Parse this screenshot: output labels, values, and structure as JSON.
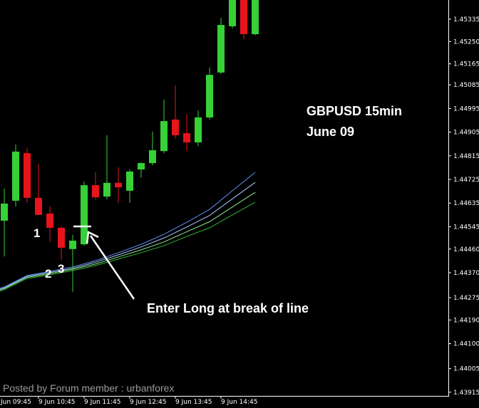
{
  "chart_data": {
    "type": "candlestick",
    "title": "GBPUSD 15min",
    "subtitle": "June 09",
    "categories": [
      "Jun 09:45",
      null,
      null,
      null,
      "9 Jun 10:45",
      null,
      null,
      null,
      "9 Jun 11:45",
      null,
      null,
      null,
      "9 Jun 12:45",
      null,
      null,
      null,
      "9 Jun 13:45",
      null,
      null,
      null,
      "9 Jun 14:45",
      null,
      null,
      null
    ],
    "open": [
      null,
      1.44568,
      1.44644,
      1.44825,
      1.44655,
      1.44595,
      1.44541,
      1.4446,
      1.44478,
      1.44703,
      1.4466,
      1.44712,
      1.44682,
      1.44763,
      1.44787,
      1.44833,
      1.44953,
      1.44901,
      1.44866,
      1.44961,
      1.45132,
      1.45308,
      1.45408,
      1.45278
    ],
    "high": [
      null,
      1.4469,
      1.44858,
      1.44844,
      1.44785,
      1.44622,
      1.44546,
      1.44514,
      1.44717,
      1.44752,
      1.44893,
      1.44771,
      1.44763,
      1.4479,
      1.44907,
      1.45029,
      1.45083,
      1.44974,
      1.44988,
      1.45151,
      1.4534,
      1.45435,
      1.45435,
      1.45435
    ],
    "low": [
      null,
      1.44432,
      1.44622,
      1.44636,
      1.4459,
      1.44487,
      1.44419,
      1.44297,
      1.44473,
      1.44649,
      1.44649,
      1.44636,
      1.44636,
      1.44731,
      1.44779,
      1.44825,
      1.4488,
      1.44833,
      1.44852,
      1.44953,
      1.45126,
      1.453,
      1.45259,
      1.45273
    ],
    "close": [
      null,
      1.44633,
      1.44831,
      1.44655,
      1.4459,
      1.44541,
      1.44465,
      1.44492,
      1.44703,
      1.44657,
      1.44712,
      1.44695,
      1.44755,
      1.44787,
      1.44836,
      1.44947,
      1.44893,
      1.44866,
      1.44961,
      1.45123,
      1.45313,
      1.45408,
      1.45278,
      1.45408
    ],
    "up_color": "#37d137",
    "down_color": "#e8141c",
    "ma_x": [
      0,
      1,
      3,
      5,
      7,
      9,
      11,
      13,
      15,
      17,
      19,
      21,
      23
    ],
    "ma_series": [
      {
        "color": "#5b8ff0",
        "values": [
          1.44302,
          1.44316,
          1.44359,
          1.44375,
          1.44392,
          1.44416,
          1.44446,
          1.44478,
          1.44516,
          1.44562,
          1.44611,
          1.44682,
          1.44752
        ]
      },
      {
        "color": "#a9c8ff",
        "values": [
          1.44299,
          1.44312,
          1.44356,
          1.44371,
          1.44387,
          1.4441,
          1.44438,
          1.44468,
          1.44502,
          1.44544,
          1.44588,
          1.44651,
          1.44714
        ]
      },
      {
        "color": "#8de88d",
        "values": [
          1.44295,
          1.44309,
          1.44352,
          1.44367,
          1.44383,
          1.44403,
          1.4443,
          1.44457,
          1.44487,
          1.44526,
          1.44564,
          1.4462,
          1.44676
        ]
      },
      {
        "color": "#2fb82f",
        "values": [
          1.44291,
          1.44305,
          1.44348,
          1.44362,
          1.44378,
          1.44397,
          1.44422,
          1.44446,
          1.44473,
          1.44508,
          1.44541,
          1.4459,
          1.44638
        ]
      }
    ],
    "break_level": 1.44546,
    "ylim": [
      1.43901,
      1.45408
    ],
    "yticks": [
      1.45335,
      {
        "value": 1.4525,
        "label": "1.45250"
      },
      1.45165,
      1.45085,
      1.44995,
      1.44905,
      1.44815,
      1.44725,
      1.44635,
      1.44545,
      {
        "value": 1.4446,
        "label": "1.44460"
      },
      {
        "value": 1.4437,
        "label": "1.44370"
      },
      1.44275,
      {
        "value": 1.4419,
        "label": "1.44190"
      },
      {
        "value": 1.441,
        "label": "1.44100"
      },
      1.44005,
      1.43915
    ],
    "annotations": [
      "1",
      "2",
      "3",
      "Enter Long at break of line"
    ],
    "credit": "Posted by Forum member : urbanforex"
  }
}
